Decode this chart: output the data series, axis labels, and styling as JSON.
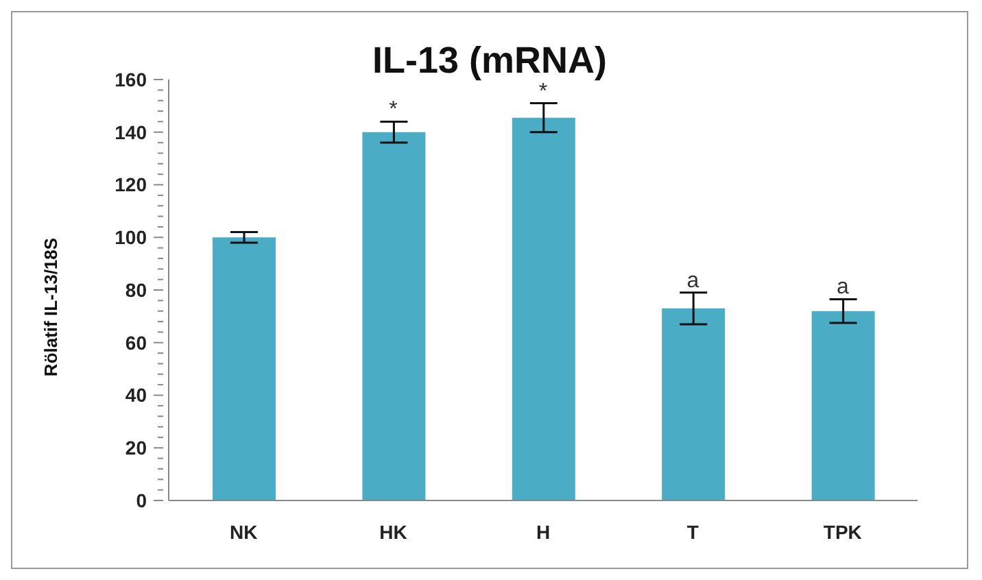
{
  "chart_data": {
    "type": "bar",
    "title": "IL-13 (mRNA)",
    "ylabel": "Rölatif IL-13/18S",
    "categories": [
      "NK",
      "HK",
      "H",
      "T",
      "TPK"
    ],
    "values": [
      100,
      140,
      145.5,
      73,
      72
    ],
    "errors": [
      2,
      4,
      5.5,
      6,
      4.5
    ],
    "color": "#4bacc6",
    "ylim": [
      0,
      160
    ],
    "yticks": [
      0,
      {
        "value": 4,
        "label": null
      },
      {
        "value": 8,
        "label": null
      },
      {
        "value": 12,
        "label": null
      },
      {
        "value": 16,
        "label": null
      },
      20,
      {
        "value": 24,
        "label": null
      },
      {
        "value": 28,
        "label": null
      },
      {
        "value": 32,
        "label": null
      },
      {
        "value": 36,
        "label": null
      },
      40,
      {
        "value": 44,
        "label": null
      },
      {
        "value": 48,
        "label": null
      },
      {
        "value": 52,
        "label": null
      },
      {
        "value": 56,
        "label": null
      },
      60,
      {
        "value": 64,
        "label": null
      },
      {
        "value": 68,
        "label": null
      },
      {
        "value": 72,
        "label": null
      },
      {
        "value": 76,
        "label": null
      },
      80,
      {
        "value": 84,
        "label": null
      },
      {
        "value": 88,
        "label": null
      },
      {
        "value": 92,
        "label": null
      },
      {
        "value": 96,
        "label": null
      },
      100,
      {
        "value": 104,
        "label": null
      },
      {
        "value": 108,
        "label": null
      },
      {
        "value": 112,
        "label": null
      },
      {
        "value": 116,
        "label": null
      },
      120,
      {
        "value": 124,
        "label": null
      },
      {
        "value": 128,
        "label": null
      },
      {
        "value": 132,
        "label": null
      },
      {
        "value": 136,
        "label": null
      },
      140,
      {
        "value": 144,
        "label": null
      },
      {
        "value": 148,
        "label": null
      },
      {
        "value": 152,
        "label": null
      },
      {
        "value": 156,
        "label": null
      },
      160
    ],
    "grid": false,
    "annotations": [
      {
        "text": "*",
        "x": "HK",
        "y": 144
      },
      {
        "text": "*",
        "x": "H",
        "y": 151
      },
      {
        "text": "a",
        "x": "T",
        "y": 79
      },
      {
        "text": "a",
        "x": "TPK",
        "y": 76.5
      }
    ]
  }
}
